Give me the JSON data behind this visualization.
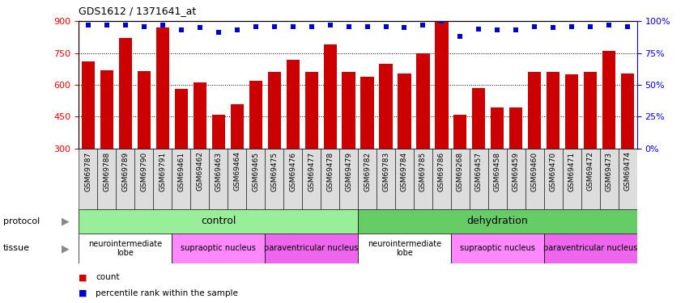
{
  "title": "GDS1612 / 1371641_at",
  "samples": [
    "GSM69787",
    "GSM69788",
    "GSM69789",
    "GSM69790",
    "GSM69791",
    "GSM69461",
    "GSM69462",
    "GSM69463",
    "GSM69464",
    "GSM69465",
    "GSM69475",
    "GSM69476",
    "GSM69477",
    "GSM69478",
    "GSM69479",
    "GSM69782",
    "GSM69783",
    "GSM69784",
    "GSM69785",
    "GSM69786",
    "GSM69268",
    "GSM69457",
    "GSM69458",
    "GSM69459",
    "GSM69460",
    "GSM69470",
    "GSM69471",
    "GSM69472",
    "GSM69473",
    "GSM69474"
  ],
  "counts": [
    710,
    670,
    820,
    665,
    870,
    580,
    610,
    460,
    510,
    620,
    660,
    720,
    660,
    790,
    660,
    640,
    700,
    655,
    750,
    900,
    460,
    585,
    495,
    495,
    660,
    660,
    650,
    660,
    760,
    655
  ],
  "percentiles": [
    97,
    97,
    97,
    96,
    97,
    93,
    95,
    91,
    93,
    96,
    96,
    96,
    96,
    97,
    96,
    96,
    96,
    95,
    97,
    100,
    88,
    94,
    93,
    93,
    96,
    95,
    96,
    96,
    97,
    96
  ],
  "bar_color": "#cc0000",
  "dot_color": "#0000cc",
  "ylim_left": [
    300,
    900
  ],
  "ylim_right": [
    0,
    100
  ],
  "yticks_left": [
    300,
    450,
    600,
    750,
    900
  ],
  "yticks_right": [
    0,
    25,
    50,
    75,
    100
  ],
  "protocol_groups": [
    {
      "label": "control",
      "start": 0,
      "end": 14,
      "color": "#99ee99"
    },
    {
      "label": "dehydration",
      "start": 15,
      "end": 29,
      "color": "#66cc66"
    }
  ],
  "tissue_groups": [
    {
      "label": "neurointermediate\nlobe",
      "start": 0,
      "end": 4,
      "color": "#ffffff"
    },
    {
      "label": "supraoptic nucleus",
      "start": 5,
      "end": 9,
      "color": "#ff88ff"
    },
    {
      "label": "paraventricular nucleus",
      "start": 10,
      "end": 14,
      "color": "#ee66ee"
    },
    {
      "label": "neurointermediate\nlobe",
      "start": 15,
      "end": 19,
      "color": "#ffffff"
    },
    {
      "label": "supraoptic nucleus",
      "start": 20,
      "end": 24,
      "color": "#ff88ff"
    },
    {
      "label": "paraventricular nucleus",
      "start": 25,
      "end": 29,
      "color": "#ee66ee"
    }
  ],
  "xtick_bg": "#dddddd",
  "protocol_label": "protocol",
  "tissue_label": "tissue",
  "legend_count_color": "#cc0000",
  "legend_dot_color": "#0000cc"
}
